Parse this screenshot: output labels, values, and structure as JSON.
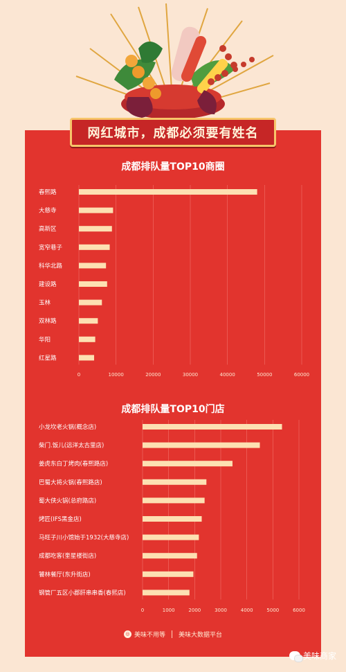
{
  "banner": {
    "title": "网红城市，成都必须要有姓名"
  },
  "colors": {
    "background": "#fbe6d3",
    "panel": "#e2342e",
    "bar": "#fde0b2",
    "gridline": "#f06a62"
  },
  "chart_data": [
    {
      "type": "bar",
      "orientation": "horizontal",
      "title": "成都排队量TOP10商圈",
      "categories": [
        "春熙路",
        "大慈寺",
        "高新区",
        "宽窄巷子",
        "科华北路",
        "建设路",
        "玉林",
        "双林路",
        "华阳",
        "红星路"
      ],
      "values": [
        48000,
        9200,
        8900,
        8300,
        7300,
        7600,
        6200,
        5100,
        4400,
        4100
      ],
      "xlim": [
        0,
        60000
      ],
      "xticks": [
        "0",
        "10000",
        "20000",
        "30000",
        "40000",
        "50000",
        "60000"
      ],
      "grid": true
    },
    {
      "type": "bar",
      "orientation": "horizontal",
      "title": "成都排队量TOP10门店",
      "categories": [
        "小龙坎老火锅(概念店)",
        "柴门.饭儿(远洋太古里店)",
        "姜虎东白丁烤肉(春熙路店)",
        "巴蜀大将火锅(春熙路店)",
        "蜀大侠火锅(总府路店)",
        "烤匠(IFS黑金店)",
        "马旺子川小馆始于1932(大慈寺店)",
        "成都吃客(奎星楼街店)",
        "饕林餐厅(东升街店)",
        "钢管厂五区小郡肝串串香(春熙店)"
      ],
      "values": [
        5350,
        4500,
        3450,
        2450,
        2380,
        2270,
        2160,
        2090,
        1950,
        1800
      ],
      "xlim": [
        0,
        6000
      ],
      "xticks": [
        "0",
        "1000",
        "2000",
        "3000",
        "4000",
        "5000",
        "6000"
      ],
      "grid": true
    }
  ],
  "footer": {
    "brand": "美味不用等",
    "platform": "美味大数据平台"
  },
  "watermark": {
    "text": "美味商家"
  }
}
